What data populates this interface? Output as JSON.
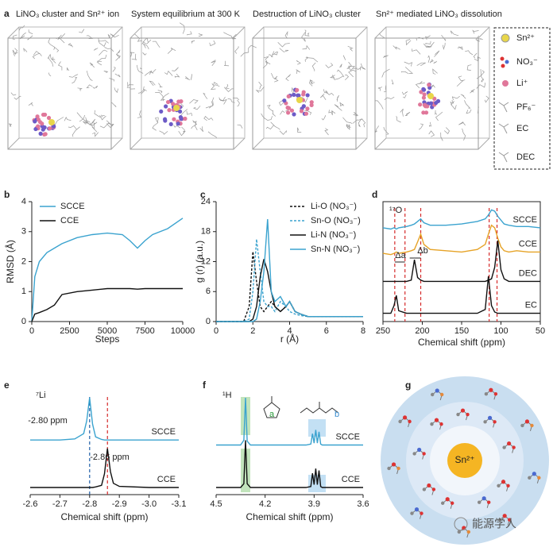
{
  "panel_labels": [
    "a",
    "b",
    "c",
    "d",
    "e",
    "f",
    "g"
  ],
  "panel_a": {
    "titles": [
      "LiNO₃ cluster and Sn²⁺ ion",
      "System equilibrium at 300 K",
      "Destruction of LiNO₃ cluster",
      "Sn²⁺ mediated LiNO₃ dissolution"
    ],
    "legend": [
      "Sn²⁺",
      "NO₃⁻",
      "Li⁺",
      "PF₆⁻",
      "EC",
      "DEC"
    ]
  },
  "chart_data": [
    {
      "type": "line",
      "xlabel": "Steps",
      "ylabel": "RMSD (Å)",
      "frame": "axes",
      "legend": "upper left",
      "x": [
        0,
        200,
        500,
        1000,
        1500,
        2000,
        3000,
        4000,
        5000,
        6000,
        6500,
        7000,
        7500,
        8000,
        9000,
        10000
      ],
      "series": [
        {
          "name": "SCCE",
          "color": "#3ba3cf",
          "values": [
            0,
            1.5,
            2.0,
            2.3,
            2.45,
            2.6,
            2.8,
            2.9,
            2.95,
            2.9,
            2.7,
            2.45,
            2.7,
            2.9,
            3.1,
            3.45
          ]
        },
        {
          "name": "CCE",
          "color": "#111111",
          "values": [
            0,
            0.25,
            0.3,
            0.4,
            0.55,
            0.9,
            1.0,
            1.05,
            1.1,
            1.1,
            1.1,
            1.08,
            1.1,
            1.1,
            1.1,
            1.1
          ]
        }
      ],
      "xlim": [
        0,
        10000
      ],
      "xticks": [
        0,
        2500,
        5000,
        7500,
        10000
      ],
      "ylim": [
        0,
        4
      ],
      "yticks": [
        0,
        1,
        2,
        3,
        4
      ]
    },
    {
      "type": "line",
      "xlabel": "r (Å)",
      "ylabel": "g (r) (a.u.)",
      "frame": "axes",
      "legend": "upper right",
      "x": [
        0,
        1.5,
        1.8,
        2.0,
        2.2,
        2.4,
        2.6,
        2.8,
        3.0,
        3.2,
        3.5,
        3.8,
        4.0,
        4.3,
        4.6,
        5,
        5.5,
        6,
        7,
        8
      ],
      "series": [
        {
          "name": "Li-O (NO₃⁻)",
          "color": "#111111",
          "dash": true,
          "values": [
            0,
            0,
            3,
            14,
            8,
            3,
            2,
            3,
            4,
            3,
            2,
            3,
            4,
            2,
            1.5,
            1,
            1,
            1,
            1,
            1
          ]
        },
        {
          "name": "Sn-O (NO₃⁻)",
          "color": "#3ba3cf",
          "dash": true,
          "values": [
            0,
            0,
            0.5,
            6,
            16.5,
            10,
            4,
            3,
            3,
            2,
            4,
            3,
            2,
            1.5,
            1.2,
            1,
            1,
            1,
            1,
            1
          ]
        },
        {
          "name": "Li-N (NO₃⁻)",
          "color": "#111111",
          "values": [
            0,
            0,
            0,
            0.5,
            3,
            9,
            12.5,
            10,
            6,
            3,
            2,
            3,
            4,
            2,
            1.5,
            1,
            1,
            1,
            1,
            1
          ]
        },
        {
          "name": "Sn-N (NO₃⁻)",
          "color": "#3ba3cf",
          "values": [
            0,
            0,
            0,
            0,
            0.5,
            4,
            10,
            20.5,
            6,
            4,
            5,
            3,
            4,
            2,
            1.5,
            1,
            1,
            1,
            1,
            1
          ]
        }
      ],
      "xlim": [
        0,
        8
      ],
      "xticks": [
        0,
        2,
        4,
        6,
        8
      ],
      "ylim": [
        0,
        24
      ],
      "yticks": [
        0,
        6,
        12,
        18,
        24
      ]
    },
    {
      "type": "line",
      "label": "¹⁷O",
      "xlabel": "Chemical shift (ppm)",
      "frame": "box",
      "series_labels": "inline",
      "x": [
        250,
        240,
        236,
        233,
        230,
        220,
        214,
        210,
        206,
        202,
        198,
        190,
        170,
        150,
        130,
        120,
        116,
        112,
        108,
        104,
        100,
        96,
        90,
        80,
        65,
        50
      ],
      "series": [
        {
          "name": "SCCE",
          "color": "#3ba3cf",
          "values": [
            7.3,
            7.2,
            7.3,
            7.2,
            7.3,
            7.4,
            7.5,
            7.6,
            7.8,
            8.0,
            7.7,
            7.5,
            7.5,
            7.6,
            7.8,
            8.0,
            8.3,
            8.7,
            8.6,
            8.2,
            7.9,
            7.6,
            7.5,
            7.4,
            7.4,
            7.3
          ]
        },
        {
          "name": "CCE",
          "color": "#e6a327",
          "values": [
            5.3,
            5.2,
            5.3,
            5.4,
            5.3,
            5.4,
            5.5,
            5.6,
            6.2,
            6.8,
            6.0,
            5.6,
            5.5,
            5.4,
            5.6,
            6.0,
            6.8,
            7.5,
            7.3,
            6.5,
            5.8,
            5.5,
            5.4,
            5.5,
            5.4,
            5.4
          ]
        },
        {
          "name": "DEC",
          "color": "#111111",
          "values": [
            3.1,
            3.1,
            3.1,
            3.1,
            3.1,
            3.1,
            3.2,
            4.8,
            3.4,
            3.2,
            3.1,
            3.1,
            3.1,
            3.1,
            3.1,
            3.1,
            3.2,
            3.3,
            4.2,
            6.3,
            4.0,
            3.3,
            3.1,
            3.1,
            3.1,
            3.1
          ]
        },
        {
          "name": "EC",
          "color": "#111111",
          "values": [
            0.6,
            0.6,
            1.2,
            2.0,
            0.8,
            0.6,
            0.6,
            0.6,
            0.6,
            0.6,
            0.6,
            0.6,
            0.6,
            0.6,
            0.6,
            0.9,
            3.5,
            1.2,
            0.7,
            0.6,
            0.6,
            0.6,
            0.6,
            0.6,
            0.6,
            0.6
          ]
        }
      ],
      "reference_lines": [
        {
          "value": 235,
          "color": "#d62b2b"
        },
        {
          "value": 222,
          "color": "#d62b2b"
        },
        {
          "value": 202,
          "color": "#d62b2b"
        },
        {
          "value": 115,
          "color": "#d62b2b"
        },
        {
          "value": 105,
          "color": "#d62b2b"
        }
      ],
      "annotations": [
        "Δa",
        "Δb"
      ],
      "xlim": [
        250,
        50
      ],
      "xticks": [
        250,
        200,
        150,
        100,
        50
      ]
    },
    {
      "type": "line",
      "label": "⁷Li",
      "xlabel": "Chemical shift (ppm)",
      "frame": "bottom",
      "series_labels": "inline",
      "x": [
        -2.6,
        -2.7,
        -2.75,
        -2.78,
        -2.79,
        -2.8,
        -2.81,
        -2.82,
        -2.84,
        -2.85,
        -2.86,
        -2.87,
        -2.88,
        -2.9,
        -3.0,
        -3.1
      ],
      "series": [
        {
          "name": "SCCE",
          "color": "#3ba3cf",
          "values": [
            5,
            5,
            5.1,
            5.6,
            6.8,
            9,
            6.5,
            5.3,
            5.05,
            5,
            5,
            5,
            5,
            5,
            5,
            5
          ]
        },
        {
          "name": "CCE",
          "color": "#111111",
          "values": [
            0.5,
            0.5,
            0.5,
            0.5,
            0.5,
            0.5,
            0.5,
            0.55,
            0.7,
            1.8,
            4.2,
            2.0,
            0.9,
            0.6,
            0.5,
            0.5
          ]
        }
      ],
      "reference_lines": [
        {
          "value": -2.8,
          "color": "#1f5fa8"
        },
        {
          "value": -2.86,
          "color": "#d62b2b"
        }
      ],
      "annotations": [
        "-2.80 ppm",
        "-2.86 ppm"
      ],
      "xlim": [
        -2.6,
        -3.1
      ],
      "xticks": [
        -2.6,
        -2.7,
        -2.8,
        -2.9,
        {
          "value": -3,
          "label": "-3.0"
        },
        -3.1
      ]
    },
    {
      "type": "line",
      "label": "¹H",
      "xlabel": "Chemical shift (ppm)",
      "frame": "bottom",
      "series_labels": "inline",
      "x": [
        4.5,
        4.35,
        4.33,
        4.32,
        4.31,
        4.29,
        4.1,
        3.95,
        3.92,
        3.91,
        3.9,
        3.89,
        3.88,
        3.87,
        3.86,
        3.85,
        3.83,
        3.7,
        3.6
      ],
      "series": [
        {
          "name": "SCCE",
          "color": "#3ba3cf",
          "values": [
            5,
            5,
            5.5,
            10,
            5.4,
            5,
            5,
            5,
            5.1,
            6.2,
            5.2,
            6.6,
            5.2,
            6.4,
            5.1,
            5,
            5,
            5,
            5
          ]
        },
        {
          "name": "CCE",
          "color": "#111111",
          "values": [
            0.5,
            0.5,
            0.9,
            5.5,
            0.9,
            0.5,
            0.5,
            0.5,
            0.6,
            2.0,
            0.8,
            2.5,
            0.8,
            2.3,
            0.6,
            0.5,
            0.5,
            0.5,
            0.5
          ]
        }
      ],
      "annotations": [
        "a",
        "b"
      ],
      "xlim": [
        4.5,
        3.6
      ],
      "xticks": [
        4.5,
        4.2,
        3.9,
        3.6
      ]
    }
  ],
  "panel_g": {
    "center_label": "Sn²⁺"
  },
  "watermark": "能源学人"
}
